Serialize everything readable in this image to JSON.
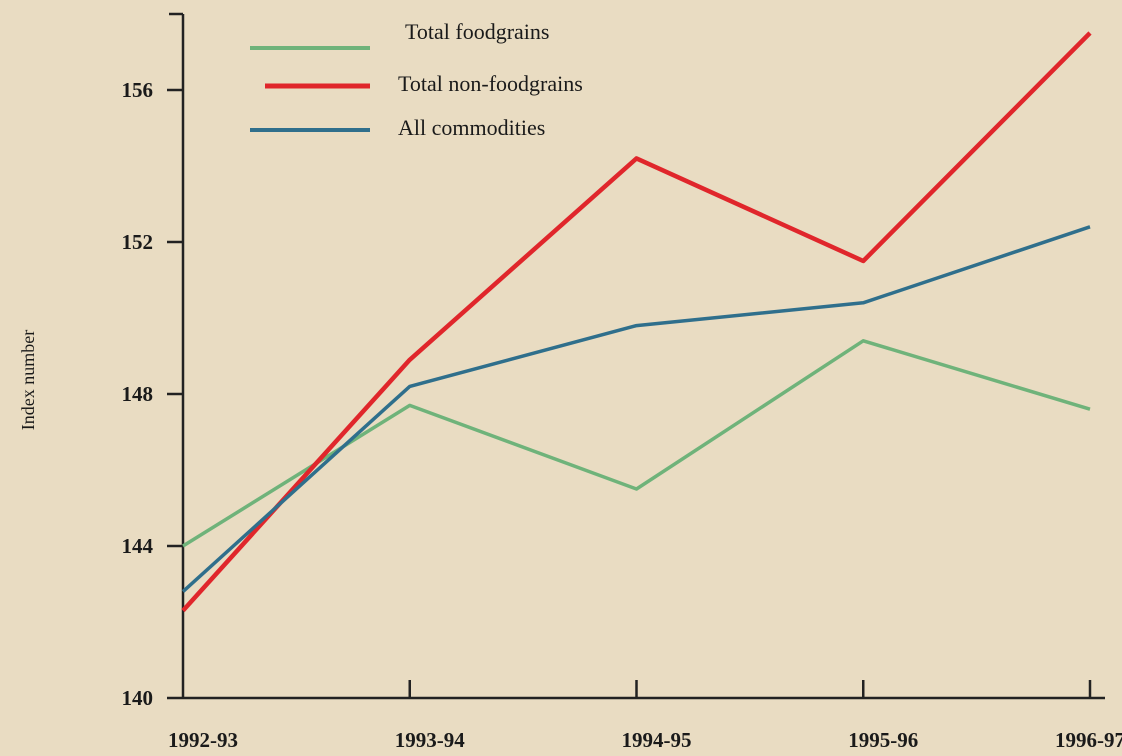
{
  "chart_data": {
    "type": "line",
    "y_label": "Index number",
    "categories": [
      "1992-93",
      "1993-94",
      "1994-95",
      "1995-96",
      "1996-97"
    ],
    "series": [
      {
        "name": "Total foodgrains",
        "color": "#6fb37a",
        "values": [
          144.0,
          147.7,
          145.5,
          149.4,
          147.6
        ]
      },
      {
        "name": "Total non-foodgrains",
        "color": "#e0262b",
        "values": [
          142.3,
          148.9,
          154.2,
          151.5,
          157.5
        ]
      },
      {
        "name": "All commodities",
        "color": "#2f6f8c",
        "values": [
          142.8,
          148.2,
          149.8,
          150.4,
          152.4
        ]
      }
    ],
    "ylim": [
      140,
      158
    ],
    "yticks": [
      140,
      144,
      148,
      152,
      156
    ],
    "legend": "upper left"
  }
}
